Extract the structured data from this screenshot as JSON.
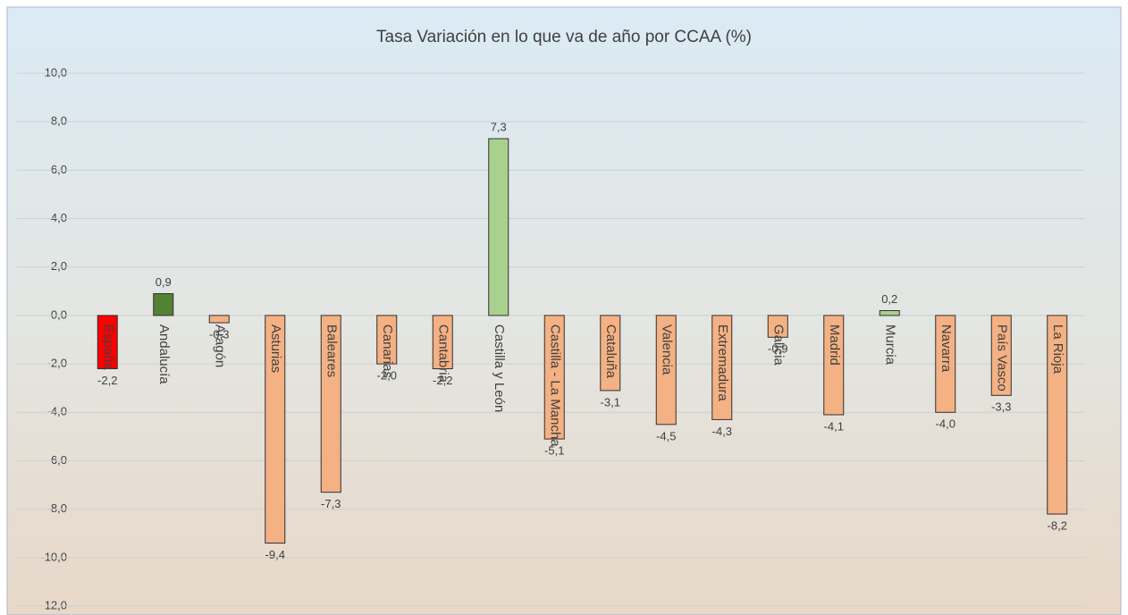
{
  "chart_data": {
    "type": "bar",
    "title": "Tasa Variación  en lo que va de año por CCAA (%)",
    "categories": [
      "España",
      "Andalucía",
      "Aragón",
      "Asturias",
      "Baleares",
      "Canarias",
      "Cantabria",
      "Castilla y León",
      "Castilla - La Mancha",
      "Cataluña",
      "Valencia",
      "Extremadura",
      "Galicia",
      "Madrid",
      "Murcia",
      "Navarra",
      "País Vasco",
      "La Rioja"
    ],
    "values": [
      -2.2,
      0.9,
      -0.3,
      -9.4,
      -7.3,
      -2.0,
      -2.2,
      7.3,
      -5.1,
      -3.1,
      -4.5,
      -4.3,
      -0.9,
      -4.1,
      0.2,
      -4.0,
      -3.3,
      -8.2
    ],
    "value_labels": [
      "-2,2",
      "0,9",
      "-0,3",
      "-9,4",
      "-7,3",
      "-2,0",
      "-2,2",
      "7,3",
      "-5,1",
      "-3,1",
      "-4,5",
      "-4,3",
      "-0,9",
      "-4,1",
      "0,2",
      "-4,0",
      "-3,3",
      "-8,2"
    ],
    "colors": [
      "#ff0000",
      "#548235",
      "#f4b183",
      "#f4b183",
      "#f4b183",
      "#f4b183",
      "#f4b183",
      "#a9d18e",
      "#f4b183",
      "#f4b183",
      "#f4b183",
      "#f4b183",
      "#f4b183",
      "#f4b183",
      "#a9d18e",
      "#f4b183",
      "#f4b183",
      "#f4b183"
    ],
    "ylim": [
      -12,
      10
    ],
    "yticks": [
      {
        "value": -12,
        "label": "-12,0"
      },
      {
        "value": -10,
        "label": "-10,0"
      },
      {
        "value": -8,
        "label": "-8,0"
      },
      {
        "value": -6,
        "label": "-6,0"
      },
      {
        "value": -4,
        "label": "-4,0"
      },
      {
        "value": -2,
        "label": "-2,0"
      },
      {
        "value": 0,
        "label": "0,0"
      },
      {
        "value": 2,
        "label": "2,0"
      },
      {
        "value": 4,
        "label": "4,0"
      },
      {
        "value": 6,
        "label": "6,0"
      },
      {
        "value": 8,
        "label": "8,0"
      },
      {
        "value": 10,
        "label": "10,0"
      }
    ],
    "grid": true
  }
}
